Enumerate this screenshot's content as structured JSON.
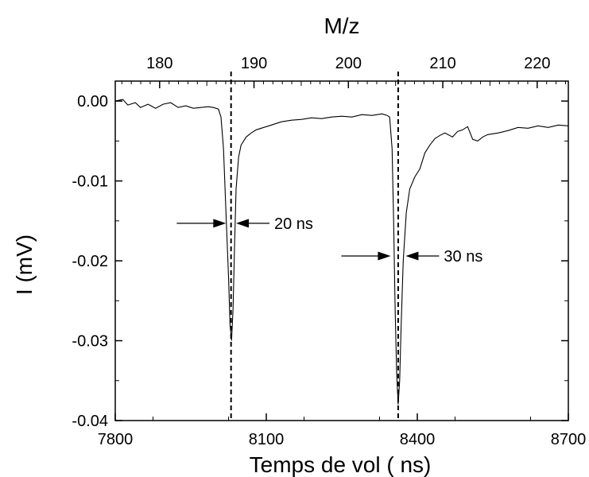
{
  "chart_data": {
    "type": "line",
    "title": "",
    "xlabel": "Temps de vol  ( ns)",
    "ylabel": "I (mV)",
    "x2label": "M/z",
    "xlim": [
      7800,
      8700
    ],
    "ylim": [
      -0.04,
      0.0025
    ],
    "x2lim": [
      175.3,
      223.3
    ],
    "xticks": [
      7800,
      8100,
      8400,
      8700
    ],
    "xtick_labels": [
      "7800",
      "8100",
      "8400",
      "8700"
    ],
    "yticks": [
      0.0,
      -0.01,
      -0.02,
      -0.03,
      -0.04
    ],
    "ytick_labels": [
      "0.00",
      "-0.01",
      "-0.02",
      "-0.03",
      "-0.04"
    ],
    "x2ticks": [
      180,
      190,
      200,
      210,
      220
    ],
    "x2tick_labels": [
      "180",
      "190",
      "200",
      "210",
      "220"
    ],
    "grid": false,
    "series": [
      {
        "x": [
          7800,
          7815,
          7825,
          7840,
          7850,
          7865,
          7880,
          7895,
          7910,
          7925,
          7940,
          7955,
          7970,
          7985,
          7995,
          8005,
          8010,
          8015,
          8020,
          8025,
          8028,
          8031,
          8034,
          8037,
          8040,
          8045,
          8050,
          8060,
          8070,
          8080,
          8095,
          8110,
          8130,
          8150,
          8170,
          8190,
          8210,
          8230,
          8250,
          8270,
          8290,
          8310,
          8330,
          8340,
          8345,
          8350,
          8353,
          8356,
          8359,
          8362,
          8365,
          8368,
          8372,
          8378,
          8385,
          8395,
          8405,
          8415,
          8425,
          8435,
          8445,
          8455,
          8470,
          8480,
          8490,
          8500,
          8510,
          8520,
          8530,
          8540,
          8560,
          8580,
          8600,
          8620,
          8640,
          8660,
          8680,
          8700
        ],
        "y": [
          0.0,
          0.0002,
          -0.0005,
          -0.0002,
          -0.0008,
          -0.0004,
          -0.0009,
          -0.0004,
          -0.0002,
          -0.0008,
          -0.0006,
          -0.0009,
          -0.0008,
          -0.0007,
          -0.0008,
          -0.001,
          -0.002,
          -0.006,
          -0.014,
          -0.022,
          -0.028,
          -0.03,
          -0.026,
          -0.018,
          -0.011,
          -0.007,
          -0.0055,
          -0.0045,
          -0.004,
          -0.0036,
          -0.0033,
          -0.003,
          -0.0026,
          -0.0024,
          -0.0023,
          -0.0021,
          -0.0022,
          -0.002,
          -0.0019,
          -0.002,
          -0.0017,
          -0.0018,
          -0.0016,
          -0.0018,
          -0.002,
          -0.006,
          -0.015,
          -0.026,
          -0.034,
          -0.038,
          -0.035,
          -0.028,
          -0.02,
          -0.014,
          -0.011,
          -0.0095,
          -0.0085,
          -0.0065,
          -0.0055,
          -0.0047,
          -0.0043,
          -0.004,
          -0.0045,
          -0.0038,
          -0.0036,
          -0.0032,
          -0.0048,
          -0.005,
          -0.0045,
          -0.0042,
          -0.004,
          -0.0037,
          -0.0033,
          -0.0034,
          -0.0031,
          -0.0033,
          -0.003,
          -0.0031
        ]
      }
    ],
    "vlines": [
      8030,
      8362
    ],
    "annotations": [
      {
        "text": "20 ns",
        "y": -0.0153,
        "x_center": 8030,
        "width_ns": 20
      },
      {
        "text": "30 ns",
        "y": -0.0194,
        "x_center": 8362,
        "width_ns": 30
      }
    ]
  }
}
